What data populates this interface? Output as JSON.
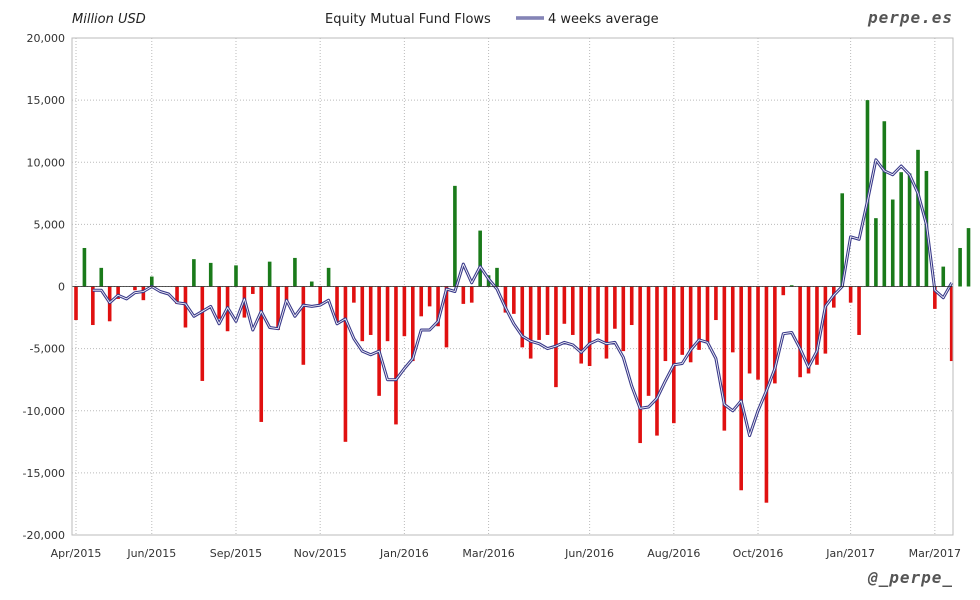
{
  "chart_data": {
    "type": "bar",
    "title": "Equity Mutual Fund Flows",
    "units_label": "Million USD",
    "legend": {
      "label": "4 weeks average",
      "placement": "top"
    },
    "brand_top": "perpe.es",
    "brand_bottom": "@_perpe_",
    "ylim": [
      -20000,
      20000
    ],
    "y_ticks": [
      {
        "value": 20000,
        "label": "20,000"
      },
      {
        "value": 15000,
        "label": "15,000"
      },
      {
        "value": 10000,
        "label": "10,000"
      },
      {
        "value": 5000,
        "label": "5,000"
      },
      {
        "value": 0,
        "label": "0"
      },
      {
        "value": -5000,
        "label": "-5,000"
      },
      {
        "value": -10000,
        "label": "-10,000"
      },
      {
        "value": -15000,
        "label": "-15,000"
      },
      {
        "value": -20000,
        "label": "-20,000"
      }
    ],
    "x_ticks": [
      "Apr/2015",
      "Jun/2015",
      "Sep/2015",
      "Nov/2015",
      "Jan/2016",
      "Mar/2016",
      "Jun/2016",
      "Aug/2016",
      "Oct/2016",
      "Jan/2017",
      "Mar/2017"
    ],
    "x_tick_week_index": [
      0,
      9,
      19,
      29,
      39,
      49,
      61,
      71,
      81,
      92,
      102
    ],
    "grid": true,
    "colors": {
      "positive": "#1a7a1a",
      "negative": "#e01010",
      "average": "#3a3a8a",
      "grid": "#bbbbbb"
    },
    "weekly_flows": [
      -2700,
      3100,
      -3100,
      1500,
      -2800,
      -1000,
      0,
      -300,
      -1100,
      800,
      0,
      0,
      -1400,
      -3300,
      2200,
      -7600,
      1900,
      -2600,
      -3600,
      1700,
      -2500,
      -600,
      -10900,
      2000,
      -3500,
      -1400,
      2300,
      -6300,
      400,
      -1500,
      1500,
      -2900,
      -12500,
      -1300,
      -4400,
      -3900,
      -8800,
      -4400,
      -11100,
      -4000,
      -6000,
      -2400,
      -1600,
      -3200,
      -4900,
      8100,
      -1400,
      -1300,
      4500,
      900,
      1500,
      -2100,
      -2200,
      -4900,
      -5800,
      -4300,
      -3900,
      -8100,
      -3000,
      -3900,
      -6200,
      -6400,
      -3800,
      -5800,
      -3400,
      -5200,
      -3100,
      -12600,
      -8800,
      -12000,
      -6000,
      -11000,
      -5500,
      -6100,
      -5100,
      -4500,
      -2700,
      -11600,
      -5300,
      -16400,
      -7000,
      -7500,
      -17400,
      -7800,
      -700,
      100,
      -7300,
      -7000,
      -6300,
      -5400,
      -1700,
      7500,
      -1300,
      -3900,
      15000,
      5500,
      13300,
      7000,
      9200,
      9100,
      11000,
      9300,
      -1800,
      1600,
      -6000,
      3100,
      4700
    ],
    "average_4w": [
      null,
      null,
      -300,
      -300,
      -1300,
      -700,
      -1000,
      -500,
      -400,
      0,
      -400,
      -600,
      -1300,
      -1400,
      -2400,
      -2000,
      -1600,
      -3000,
      -1700,
      -2800,
      -1000,
      -3500,
      -2000,
      -3300,
      -3400,
      -1100,
      -2400,
      -1500,
      -1600,
      -1500,
      -1100,
      -3000,
      -2600,
      -4200,
      -5200,
      -5500,
      -5200,
      -7500,
      -7500,
      -6600,
      -5800,
      -3500,
      -3500,
      -2800,
      -200,
      -400,
      1800,
      300,
      1600,
      600,
      -200,
      -1700,
      -3000,
      -4000,
      -4400,
      -4600,
      -5000,
      -4800,
      -4500,
      -4700,
      -5300,
      -4600,
      -4300,
      -4600,
      -4500,
      -5700,
      -8000,
      -9800,
      -9700,
      -9000,
      -7600,
      -6300,
      -6200,
      -5100,
      -4300,
      -4500,
      -5800,
      -9500,
      -10000,
      -9200,
      -12000,
      -10000,
      -8400,
      -6600,
      -3800,
      -3700,
      -5000,
      -6500,
      -5200,
      -1600,
      -700,
      0,
      4000,
      3800,
      6900,
      10200,
      9300,
      9000,
      9700,
      9000,
      7500,
      5000,
      -300,
      -900,
      300
    ]
  }
}
